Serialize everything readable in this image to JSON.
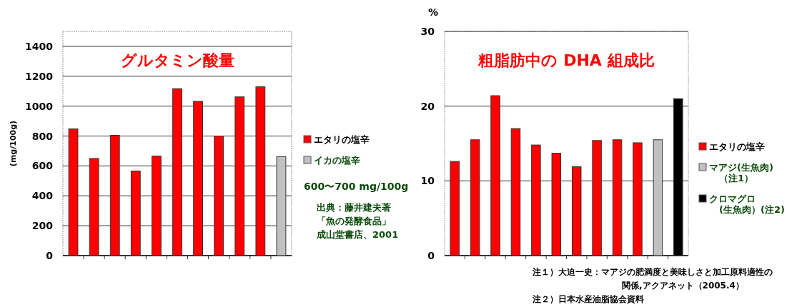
{
  "chart_data": [
    {
      "type": "bar",
      "title": "グルタミン酸量",
      "ylabel": "(mg/100g)",
      "categories": [
        null,
        null,
        null,
        null,
        null,
        null,
        null,
        null,
        null,
        null,
        null
      ],
      "series": [
        {
          "name": "エタリの塩辛",
          "color": "#ff0000",
          "values": [
            848,
            650,
            805,
            566,
            666,
            1117,
            1032,
            800,
            1062,
            1130,
            null
          ]
        },
        {
          "name": "イカの塩辛",
          "color": "#c0c0c0",
          "values": [
            null,
            null,
            null,
            null,
            null,
            null,
            null,
            null,
            null,
            null,
            662
          ]
        }
      ],
      "ylim": [
        0,
        1500
      ],
      "yticks": [
        0,
        200,
        400,
        600,
        800,
        1000,
        1200,
        1400
      ],
      "grid": "y",
      "legend": "right",
      "annotations": [
        "600〜700 mg/100g",
        "出典：藤井建夫著",
        "「魚の発酵食品」",
        "成山堂書店、2001"
      ]
    },
    {
      "type": "bar",
      "title": "粗脂肪中の DHA 組成比",
      "ylabel": "%",
      "categories": [
        null,
        null,
        null,
        null,
        null,
        null,
        null,
        null,
        null,
        null,
        null,
        null
      ],
      "series": [
        {
          "name": "エタリの塩辛",
          "color": "#ff0000",
          "values": [
            12.6,
            15.5,
            21.4,
            17.0,
            14.8,
            13.7,
            11.9,
            15.4,
            15.5,
            15.1,
            null,
            null
          ]
        },
        {
          "name": "マアジ(生魚肉)\n（注1）",
          "color": "#c0c0c0",
          "values": [
            null,
            null,
            null,
            null,
            null,
            null,
            null,
            null,
            null,
            null,
            15.5,
            null
          ]
        },
        {
          "name": "クロマグロ\n(生魚肉）(注2)",
          "color": "#000000",
          "values": [
            null,
            null,
            null,
            null,
            null,
            null,
            null,
            null,
            null,
            null,
            null,
            21.0
          ]
        }
      ],
      "ylim": [
        0,
        30
      ],
      "yticks": [
        0,
        10,
        20,
        30
      ],
      "grid": "y",
      "legend": "right",
      "annotations": [
        "注１）大迫一史：マアジの肥満度と美味しさと加工原料適性の",
        "関係,アクアネット（2005.4）",
        "注２）日本水産油脂協会資料"
      ]
    }
  ]
}
